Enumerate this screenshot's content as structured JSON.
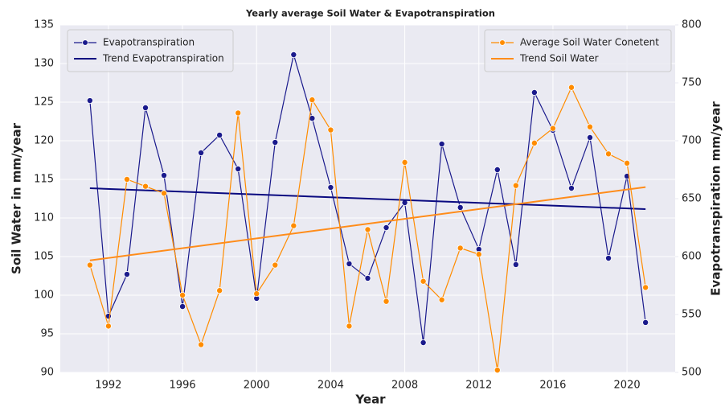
{
  "chart_data": {
    "type": "line",
    "title": "Yearly average Soil Water & Evapotranspiration",
    "xlabel": "Year",
    "ylabel": "Soil Water in mm/year",
    "y2label": "Evapotranspiration mm/year",
    "x": [
      1991,
      1992,
      1993,
      1994,
      1995,
      1996,
      1997,
      1998,
      1999,
      2000,
      2001,
      2002,
      2003,
      2004,
      2005,
      2006,
      2007,
      2008,
      2009,
      2010,
      2011,
      2012,
      2013,
      2014,
      2015,
      2016,
      2017,
      2018,
      2019,
      2020,
      2021
    ],
    "xlim": [
      1989.4,
      2022.6
    ],
    "xticks": [
      1992,
      1996,
      2000,
      2004,
      2008,
      2012,
      2016,
      2020
    ],
    "ylim": [
      90,
      135
    ],
    "yticks": [
      90,
      95,
      100,
      105,
      110,
      115,
      120,
      125,
      130,
      135
    ],
    "y2lim": [
      500,
      800
    ],
    "y2ticks": [
      500,
      550,
      600,
      650,
      700,
      750,
      800
    ],
    "grid": true,
    "series": [
      {
        "name": "Evapotranspiration",
        "color": "#1a1a8c",
        "axis": "y2",
        "markers": true,
        "legend": "upper left",
        "values": [
          734.7,
          548.6,
          584.7,
          728.5,
          670.1,
          556.9,
          689.6,
          704.9,
          675.7,
          563.9,
          698.6,
          774.3,
          719.4,
          659.7,
          593.8,
          581.3,
          625,
          646.5,
          525.7,
          697.2,
          642.4,
          606.3,
          675,
          593.1,
          741.7,
          709,
          659,
          702.8,
          598.6,
          669.4,
          543.1
        ]
      },
      {
        "name": "Trend Evapotranspiration",
        "color": "#0a0a80",
        "axis": "y2",
        "markers": false,
        "legend": "upper left",
        "x": [
          1991,
          2021
        ],
        "values": [
          659,
          641
        ]
      },
      {
        "name": "Average Soil Water Conetent",
        "color": "#ff8c00",
        "axis": "y",
        "markers": true,
        "legend": "upper right",
        "values": [
          103.9,
          96.0,
          115.0,
          114.1,
          113.2,
          100.0,
          93.6,
          100.6,
          123.6,
          100.2,
          103.9,
          109.0,
          125.3,
          121.4,
          96.0,
          108.5,
          99.2,
          117.2,
          101.8,
          99.4,
          106.1,
          105.3,
          90.3,
          114.2,
          119.7,
          121.6,
          126.9,
          121.8,
          118.3,
          117.1,
          101.0
        ]
      },
      {
        "name": "Trend Soil Water",
        "color": "#ff8c1a",
        "axis": "y",
        "markers": false,
        "legend": "upper right",
        "x": [
          1991,
          2021
        ],
        "values": [
          104.5,
          114
        ]
      }
    ]
  }
}
